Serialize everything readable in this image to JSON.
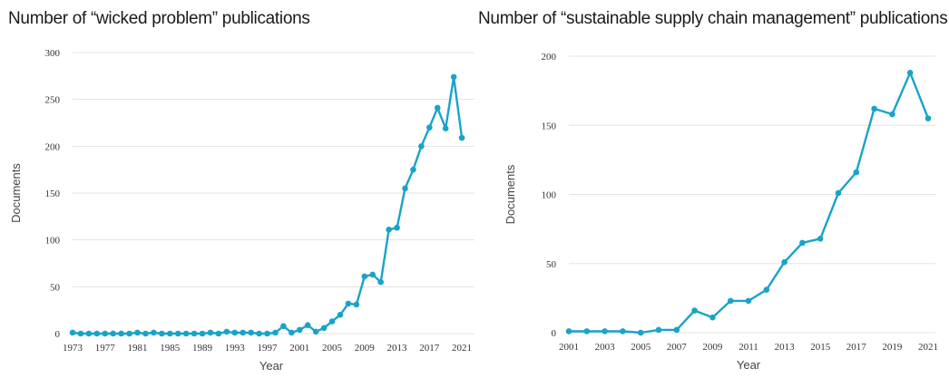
{
  "chart_data": [
    {
      "type": "line",
      "title": "Number of “wicked problem” publications",
      "xlabel": "Year",
      "ylabel": "Documents",
      "ylim": [
        0,
        300
      ],
      "yticks": [
        0,
        50,
        100,
        150,
        200,
        250,
        300
      ],
      "xticks": [
        1973,
        1977,
        1981,
        1985,
        1989,
        1993,
        1997,
        2001,
        2005,
        2009,
        2013,
        2017,
        2021
      ],
      "xlim": [
        1973,
        2022
      ],
      "grid": true,
      "color": "#1aa3c8",
      "x": [
        1973,
        1974,
        1975,
        1976,
        1977,
        1978,
        1979,
        1980,
        1981,
        1982,
        1983,
        1984,
        1985,
        1986,
        1987,
        1988,
        1989,
        1990,
        1991,
        1992,
        1993,
        1994,
        1995,
        1996,
        1997,
        1998,
        1999,
        2000,
        2001,
        2002,
        2003,
        2004,
        2005,
        2006,
        2007,
        2008,
        2009,
        2010,
        2011,
        2012,
        2013,
        2014,
        2015,
        2016,
        2017,
        2018,
        2019,
        2020,
        2021
      ],
      "y": [
        1,
        0,
        0,
        0,
        0,
        0,
        0,
        0,
        1,
        0,
        1,
        0,
        0,
        0,
        0,
        0,
        0,
        1,
        0,
        2,
        1,
        1,
        1,
        0,
        0,
        1,
        8,
        1,
        4,
        9,
        2,
        6,
        13,
        20,
        32,
        31,
        61,
        63,
        55,
        111,
        113,
        155,
        175,
        200,
        220,
        241,
        219,
        274,
        209
      ]
    },
    {
      "type": "line",
      "title": "Number of “sustainable supply chain management” publications",
      "xlabel": "Year",
      "ylabel": "Documents",
      "ylim": [
        0,
        200
      ],
      "yticks": [
        0,
        50,
        100,
        150,
        200
      ],
      "xticks": [
        2001,
        2003,
        2005,
        2007,
        2009,
        2011,
        2013,
        2015,
        2017,
        2019,
        2021
      ],
      "xlim": [
        2001,
        2021
      ],
      "grid": true,
      "color": "#1aa3c8",
      "x": [
        2001,
        2002,
        2003,
        2004,
        2005,
        2006,
        2007,
        2008,
        2009,
        2010,
        2011,
        2012,
        2013,
        2014,
        2015,
        2016,
        2017,
        2018,
        2019,
        2020,
        2021
      ],
      "y": [
        1,
        1,
        1,
        1,
        0,
        2,
        2,
        16,
        11,
        23,
        23,
        31,
        51,
        65,
        68,
        101,
        116,
        162,
        158,
        188,
        155
      ]
    }
  ]
}
